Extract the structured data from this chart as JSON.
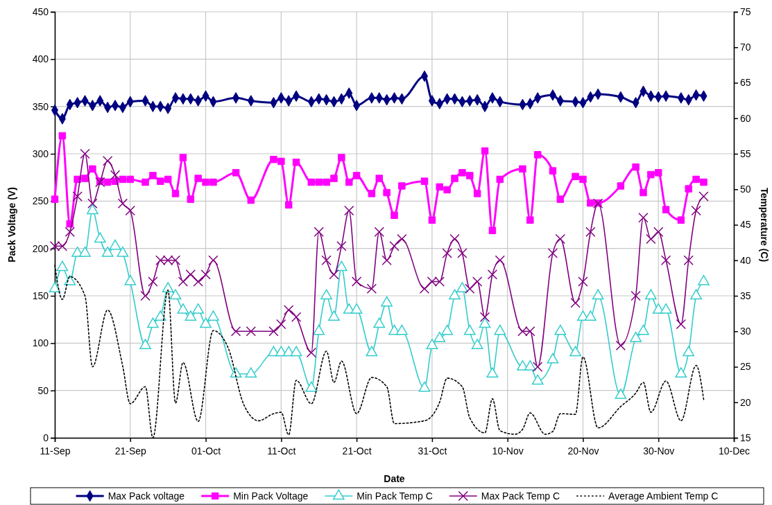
{
  "chart_data": {
    "type": "line",
    "xlabel": "Date",
    "ylabel": "Pack Voltage (V)",
    "y2label": "Temperature (C)",
    "x": [
      "--09-11",
      "--09-12",
      "--09-13",
      "--09-14",
      "--09-15",
      "--09-16",
      "--09-17",
      "--09-18",
      "--09-19",
      "--09-20",
      "--09-21",
      "--09-23",
      "--09-24",
      "--09-25",
      "--09-26",
      "--09-27",
      "--09-28",
      "--09-29",
      "--09-30",
      "--10-01",
      "--10-02",
      "--10-05",
      "--10-07",
      "--10-10",
      "--10-11",
      "--10-12",
      "--10-13",
      "--10-15",
      "--10-16",
      "--10-17",
      "--10-18",
      "--10-19",
      "--10-20",
      "--10-21",
      "--10-23",
      "--10-24",
      "--10-25",
      "--10-26",
      "--10-27",
      "--10-30",
      "--10-31",
      "--11-01",
      "--11-02",
      "--11-03",
      "--11-04",
      "--11-05",
      "--11-06",
      "--11-07",
      "--11-08",
      "--11-09",
      "--11-12",
      "--11-13",
      "--11-14",
      "--11-16",
      "--11-17",
      "--11-19",
      "--11-20",
      "--11-21",
      "--11-22",
      "--11-25",
      "--11-27",
      "--11-28",
      "--11-29",
      "--11-30",
      "--12-01",
      "--12-03",
      "--12-04",
      "--12-05",
      "--12-06"
    ],
    "xlim": [
      "--09-11",
      "--12-10"
    ],
    "xticks": [
      {
        "value": "--09-11",
        "label": "11-Sep"
      },
      {
        "value": "--09-21",
        "label": "21-Sep"
      },
      {
        "value": "--10-01",
        "label": "01-Oct"
      },
      {
        "value": "--10-11",
        "label": "11-Oct"
      },
      {
        "value": "--10-21",
        "label": "21-Oct"
      },
      {
        "value": "--10-31",
        "label": "31-Oct"
      },
      {
        "value": "--11-10",
        "label": "10-Nov"
      },
      {
        "value": "--11-20",
        "label": "20-Nov"
      },
      {
        "value": "--11-30",
        "label": "30-Nov"
      },
      {
        "value": "--12-10",
        "label": "10-Dec"
      }
    ],
    "ylim": [
      0,
      450
    ],
    "yticks": [
      0,
      50,
      100,
      150,
      200,
      250,
      300,
      350,
      400,
      450
    ],
    "y2lim": [
      15,
      75
    ],
    "y2ticks": [
      15,
      20,
      25,
      30,
      35,
      40,
      45,
      50,
      55,
      60,
      65,
      70,
      75
    ],
    "grid": true,
    "legend": "bottom",
    "series": [
      {
        "name": "Max Pack voltage",
        "color": "#000080",
        "marker": "diamond",
        "values": [
          346,
          337,
          352,
          354,
          356,
          351,
          356,
          349,
          351,
          349,
          355,
          356,
          350,
          350,
          348,
          359,
          358,
          358,
          356,
          361,
          355,
          359,
          356,
          354,
          359,
          356,
          361,
          355,
          358,
          357,
          355,
          358,
          364,
          351,
          359,
          359,
          357,
          359,
          358,
          382,
          356,
          353,
          358,
          358,
          355,
          356,
          357,
          350,
          359,
          355,
          352,
          353,
          359,
          362,
          356,
          355,
          354,
          360,
          363,
          360,
          354,
          366,
          361,
          360,
          361,
          359,
          357,
          362,
          361
        ]
      },
      {
        "name": "Min Pack Voltage",
        "color": "#ff00ff",
        "marker": "square",
        "values": [
          252,
          319,
          226,
          273,
          274,
          284,
          271,
          270,
          271,
          273,
          273,
          270,
          277,
          271,
          273,
          258,
          296,
          252,
          274,
          270,
          270,
          280,
          251,
          294,
          292,
          246,
          291,
          270,
          270,
          270,
          274,
          296,
          270,
          277,
          258,
          274,
          259,
          235,
          266,
          271,
          230,
          265,
          262,
          274,
          280,
          277,
          258,
          303,
          219,
          273,
          284,
          230,
          299,
          282,
          252,
          276,
          273,
          248,
          248,
          266,
          286,
          259,
          278,
          280,
          241,
          230,
          263,
          273,
          270
        ]
      },
      {
        "name": "Min Pack Temp C",
        "color": "#33cccc",
        "marker": "triangle",
        "axis": "y2",
        "values": [
          36,
          39,
          37,
          41,
          41,
          47,
          43,
          41,
          42,
          41,
          37,
          28,
          31,
          32,
          36,
          35,
          33,
          32,
          33,
          31,
          32,
          24,
          24,
          27,
          27,
          27,
          27,
          22,
          30,
          35,
          32,
          39,
          33,
          33,
          27,
          31,
          34,
          30,
          30,
          22,
          28,
          29,
          30,
          35,
          36,
          30,
          28,
          31,
          24,
          30,
          25,
          25,
          23,
          26,
          30,
          27,
          32,
          32,
          35,
          21,
          29,
          30,
          35,
          33,
          33,
          24,
          27,
          35,
          37
        ]
      },
      {
        "name": "Max Pack Temp C",
        "color": "#800080",
        "marker": "cross",
        "axis": "y2",
        "values": [
          42,
          42,
          44,
          49,
          55,
          48,
          51,
          54,
          52,
          48,
          47,
          35,
          37,
          40,
          40,
          40,
          37,
          38,
          37,
          38,
          40,
          30,
          30,
          30,
          31,
          33,
          32,
          27,
          44,
          40,
          38,
          42,
          47,
          37,
          36,
          44,
          40,
          42,
          43,
          36,
          37,
          37,
          41,
          43,
          41,
          36,
          37,
          32,
          38,
          40,
          30,
          30,
          25,
          41,
          43,
          34,
          37,
          44,
          48,
          28,
          35,
          46,
          43,
          44,
          40,
          31,
          40,
          47,
          49
        ]
      },
      {
        "name": "Average Ambient Temp C",
        "color": "#000000",
        "marker": "none",
        "line_style": "dotted",
        "axis": "y2",
        "x": [
          "--09-11",
          "--09-12",
          "--09-13",
          "--09-15",
          "--09-16",
          "--09-18",
          "--09-20",
          "--09-21",
          "--09-23",
          "--09-24",
          "--09-26",
          "--09-27",
          "--09-28",
          "--09-30",
          "--10-02",
          "--10-04",
          "--10-06",
          "--10-08",
          "--10-10",
          "--10-11",
          "--10-12",
          "--10-13",
          "--10-15",
          "--10-17",
          "--10-18",
          "--10-19",
          "--10-21",
          "--10-23",
          "--10-25",
          "--10-26",
          "--10-30",
          "--11-01",
          "--11-02",
          "--11-04",
          "--11-05",
          "--11-07",
          "--11-08",
          "--11-09",
          "--11-11",
          "--11-12",
          "--11-13",
          "--11-15",
          "--11-16",
          "--11-17",
          "--11-19",
          "--11-20",
          "--11-22",
          "--11-25",
          "--11-27",
          "--11-28",
          "--11-29",
          "--12-01",
          "--12-03",
          "--12-05",
          "--12-06"
        ],
        "values": [
          39.3,
          34.5,
          37.7,
          35.0,
          25.0,
          33.0,
          25.1,
          19.8,
          22.2,
          15.0,
          35.8,
          19.9,
          25.6,
          17.3,
          30.1,
          27.6,
          19.8,
          17.4,
          18.4,
          18.6,
          15.4,
          23.1,
          19.8,
          27.2,
          22.8,
          25.8,
          18.4,
          23.5,
          22.2,
          17.0,
          17.4,
          20.0,
          23.4,
          22.2,
          17.8,
          15.7,
          20.5,
          16.0,
          15.5,
          16.2,
          18.5,
          15.5,
          15.9,
          18.4,
          18.3,
          26.4,
          16.4,
          19.4,
          21.3,
          22.8,
          18.6,
          23.0,
          17.4,
          25.2,
          20.4
        ]
      }
    ]
  }
}
